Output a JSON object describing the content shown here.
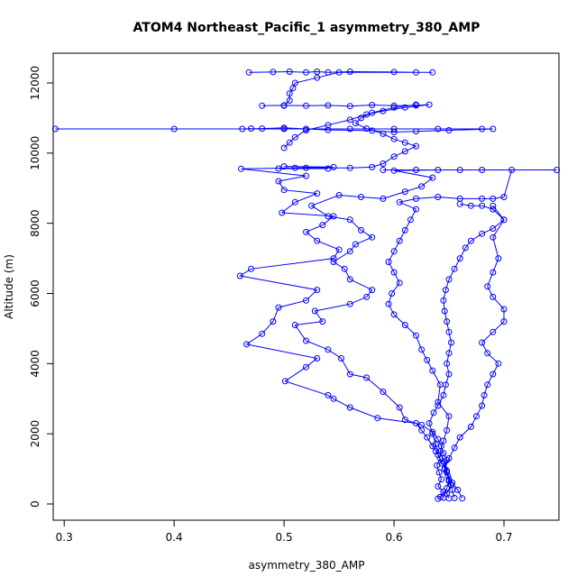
{
  "chart_data": {
    "type": "line",
    "title": "ATOM4 Northeast_Pacific_1 asymmetry_380_AMP",
    "xlabel": "asymmetry_380_AMP",
    "ylabel": "Altitude (m)",
    "xlim": [
      0.29,
      0.75
    ],
    "ylim": [
      0,
      12600
    ],
    "x_ticks": [
      0.3,
      0.4,
      0.5,
      0.6,
      0.7
    ],
    "x_tick_labels": [
      "0.3",
      "0.4",
      "0.5",
      "0.6",
      "0.7"
    ],
    "y_ticks": [
      0,
      2000,
      4000,
      6000,
      8000,
      10000,
      12000
    ],
    "y_tick_labels": [
      "0",
      "2000",
      "4000",
      "6000",
      "8000",
      "10000",
      "12000"
    ],
    "grid": false,
    "legend": "none",
    "marker": "open-circle",
    "series": [
      {
        "color": "#0000ff",
        "points": [
          [
            0.64,
            150
          ],
          [
            0.642,
            200
          ],
          [
            0.645,
            350
          ],
          [
            0.64,
            500
          ],
          [
            0.643,
            700
          ],
          [
            0.641,
            900
          ],
          [
            0.639,
            1100
          ],
          [
            0.642,
            1300
          ],
          [
            0.638,
            1500
          ],
          [
            0.635,
            1650
          ],
          [
            0.63,
            1900
          ],
          [
            0.625,
            2100
          ],
          [
            0.62,
            2300
          ],
          [
            0.585,
            2450
          ],
          [
            0.56,
            2750
          ],
          [
            0.545,
            3000
          ],
          [
            0.54,
            3100
          ],
          [
            0.501,
            3500
          ],
          [
            0.52,
            3900
          ],
          [
            0.53,
            4150
          ],
          [
            0.466,
            4550
          ],
          [
            0.48,
            4850
          ],
          [
            0.49,
            5200
          ],
          [
            0.495,
            5600
          ],
          [
            0.52,
            5800
          ],
          [
            0.53,
            6100
          ],
          [
            0.46,
            6500
          ],
          [
            0.47,
            6700
          ],
          [
            0.545,
            7000
          ],
          [
            0.55,
            7250
          ],
          [
            0.53,
            7500
          ],
          [
            0.52,
            7750
          ],
          [
            0.535,
            7950
          ],
          [
            0.545,
            8200
          ],
          [
            0.498,
            8300
          ],
          [
            0.51,
            8600
          ],
          [
            0.53,
            8850
          ],
          [
            0.5,
            8950
          ],
          [
            0.495,
            9200
          ],
          [
            0.52,
            9350
          ],
          [
            0.461,
            9550
          ],
          [
            0.51,
            9580
          ],
          [
            0.545,
            9600
          ],
          [
            0.5,
            9620
          ]
        ]
      },
      {
        "color": "#0000ff",
        "points": [
          [
            0.65,
            160
          ],
          [
            0.648,
            300
          ],
          [
            0.652,
            550
          ],
          [
            0.649,
            800
          ],
          [
            0.646,
            1000
          ],
          [
            0.648,
            1250
          ],
          [
            0.645,
            1450
          ],
          [
            0.643,
            1650
          ],
          [
            0.64,
            1850
          ],
          [
            0.635,
            2050
          ],
          [
            0.625,
            2250
          ],
          [
            0.61,
            2400
          ],
          [
            0.605,
            2750
          ],
          [
            0.59,
            3200
          ],
          [
            0.575,
            3600
          ],
          [
            0.56,
            3700
          ],
          [
            0.552,
            4150
          ],
          [
            0.54,
            4400
          ],
          [
            0.52,
            4650
          ],
          [
            0.51,
            5100
          ],
          [
            0.535,
            5200
          ],
          [
            0.528,
            5500
          ],
          [
            0.56,
            5700
          ],
          [
            0.575,
            5900
          ],
          [
            0.58,
            6100
          ],
          [
            0.56,
            6400
          ],
          [
            0.555,
            6700
          ],
          [
            0.545,
            6900
          ],
          [
            0.56,
            7200
          ],
          [
            0.565,
            7400
          ],
          [
            0.58,
            7600
          ],
          [
            0.57,
            7800
          ],
          [
            0.56,
            8100
          ],
          [
            0.54,
            8200
          ],
          [
            0.525,
            8500
          ],
          [
            0.55,
            8800
          ],
          [
            0.57,
            8750
          ],
          [
            0.59,
            8700
          ],
          [
            0.61,
            8900
          ],
          [
            0.625,
            9050
          ],
          [
            0.635,
            9300
          ],
          [
            0.6,
            9500
          ],
          [
            0.64,
            9520
          ],
          [
            0.68,
            9520
          ],
          [
            0.748,
            9520
          ]
        ]
      },
      {
        "color": "#0000ff",
        "points": [
          [
            0.655,
            170
          ],
          [
            0.653,
            400
          ],
          [
            0.65,
            650
          ],
          [
            0.648,
            950
          ],
          [
            0.645,
            1200
          ],
          [
            0.642,
            1500
          ],
          [
            0.645,
            1800
          ],
          [
            0.648,
            2100
          ],
          [
            0.65,
            2500
          ],
          [
            0.64,
            2900
          ],
          [
            0.642,
            3400
          ],
          [
            0.635,
            3800
          ],
          [
            0.63,
            4100
          ],
          [
            0.625,
            4400
          ],
          [
            0.62,
            4800
          ],
          [
            0.61,
            5100
          ],
          [
            0.6,
            5400
          ],
          [
            0.595,
            5700
          ],
          [
            0.598,
            6000
          ],
          [
            0.605,
            6300
          ],
          [
            0.6,
            6600
          ],
          [
            0.595,
            6900
          ],
          [
            0.6,
            7200
          ],
          [
            0.605,
            7500
          ],
          [
            0.61,
            7800
          ],
          [
            0.615,
            8100
          ],
          [
            0.62,
            8400
          ],
          [
            0.605,
            8600
          ],
          [
            0.62,
            8700
          ],
          [
            0.64,
            8750
          ],
          [
            0.66,
            8700
          ],
          [
            0.68,
            8700
          ],
          [
            0.69,
            8700
          ],
          [
            0.7,
            8750
          ],
          [
            0.707,
            9520
          ],
          [
            0.66,
            9520
          ],
          [
            0.62,
            9520
          ],
          [
            0.59,
            9520
          ]
        ]
      },
      {
        "color": "#0000ff",
        "points": [
          [
            0.662,
            160
          ],
          [
            0.658,
            400
          ],
          [
            0.653,
            600
          ],
          [
            0.648,
            900
          ],
          [
            0.644,
            1150
          ],
          [
            0.64,
            1400
          ],
          [
            0.638,
            1700
          ],
          [
            0.635,
            2000
          ],
          [
            0.632,
            2300
          ],
          [
            0.636,
            2600
          ],
          [
            0.64,
            2800
          ],
          [
            0.645,
            3100
          ],
          [
            0.647,
            3400
          ],
          [
            0.65,
            3700
          ],
          [
            0.648,
            4000
          ],
          [
            0.65,
            4300
          ],
          [
            0.652,
            4600
          ],
          [
            0.65,
            4900
          ],
          [
            0.648,
            5200
          ],
          [
            0.646,
            5500
          ],
          [
            0.645,
            5800
          ],
          [
            0.647,
            6100
          ],
          [
            0.65,
            6400
          ],
          [
            0.655,
            6700
          ],
          [
            0.66,
            7000
          ],
          [
            0.665,
            7300
          ],
          [
            0.67,
            7500
          ],
          [
            0.68,
            7700
          ],
          [
            0.69,
            7850
          ],
          [
            0.7,
            8100
          ],
          [
            0.69,
            8400
          ],
          [
            0.68,
            8500
          ],
          [
            0.67,
            8500
          ],
          [
            0.66,
            8550
          ]
        ]
      },
      {
        "color": "#0000ff",
        "points": [
          [
            0.645,
            180
          ],
          [
            0.648,
            450
          ],
          [
            0.65,
            700
          ],
          [
            0.646,
            1000
          ],
          [
            0.65,
            1300
          ],
          [
            0.655,
            1600
          ],
          [
            0.66,
            1900
          ],
          [
            0.67,
            2200
          ],
          [
            0.675,
            2500
          ],
          [
            0.68,
            2800
          ],
          [
            0.682,
            3100
          ],
          [
            0.685,
            3400
          ],
          [
            0.69,
            3700
          ],
          [
            0.695,
            4000
          ],
          [
            0.685,
            4300
          ],
          [
            0.68,
            4600
          ],
          [
            0.69,
            4900
          ],
          [
            0.7,
            5200
          ],
          [
            0.7,
            5550
          ],
          [
            0.69,
            5900
          ],
          [
            0.685,
            6200
          ],
          [
            0.69,
            6600
          ],
          [
            0.695,
            7000
          ],
          [
            0.69,
            7600
          ],
          [
            0.7,
            8100
          ],
          [
            0.69,
            8500
          ]
        ]
      },
      {
        "color": "#0000ff",
        "points": [
          [
            0.292,
            10690
          ],
          [
            0.4,
            10690
          ],
          [
            0.5,
            10690
          ],
          [
            0.56,
            10690
          ],
          [
            0.6,
            10690
          ],
          [
            0.64,
            10690
          ],
          [
            0.68,
            10690
          ],
          [
            0.69,
            10690
          ],
          [
            0.65,
            10650
          ],
          [
            0.62,
            10620
          ],
          [
            0.6,
            10600
          ],
          [
            0.58,
            10640
          ],
          [
            0.54,
            10660
          ],
          [
            0.52,
            10690
          ],
          [
            0.5,
            10720
          ],
          [
            0.48,
            10700
          ],
          [
            0.462,
            10690
          ],
          [
            0.47,
            10700
          ]
        ]
      },
      {
        "color": "#0000ff",
        "points": [
          [
            0.48,
            11350
          ],
          [
            0.5,
            11360
          ],
          [
            0.52,
            11350
          ],
          [
            0.54,
            11360
          ],
          [
            0.56,
            11340
          ],
          [
            0.58,
            11370
          ],
          [
            0.6,
            11350
          ],
          [
            0.62,
            11360
          ],
          [
            0.632,
            11380
          ],
          [
            0.61,
            11300
          ],
          [
            0.59,
            11200
          ],
          [
            0.575,
            11100
          ],
          [
            0.56,
            10950
          ],
          [
            0.54,
            10800
          ],
          [
            0.52,
            10650
          ],
          [
            0.51,
            10450
          ],
          [
            0.505,
            10300
          ],
          [
            0.5,
            10150
          ]
        ]
      },
      {
        "color": "#0000ff",
        "points": [
          [
            0.468,
            12300
          ],
          [
            0.49,
            12310
          ],
          [
            0.505,
            12320
          ],
          [
            0.52,
            12300
          ],
          [
            0.53,
            12320
          ],
          [
            0.54,
            12300
          ],
          [
            0.56,
            12320
          ],
          [
            0.6,
            12310
          ],
          [
            0.62,
            12300
          ],
          [
            0.635,
            12300
          ],
          [
            0.55,
            12300
          ],
          [
            0.53,
            12150
          ],
          [
            0.51,
            12000
          ],
          [
            0.508,
            11850
          ],
          [
            0.505,
            11700
          ],
          [
            0.505,
            11500
          ],
          [
            0.5,
            11350
          ]
        ]
      },
      {
        "color": "#0000ff",
        "points": [
          [
            0.62,
            11380
          ],
          [
            0.6,
            11300
          ],
          [
            0.58,
            11150
          ],
          [
            0.57,
            11000
          ],
          [
            0.565,
            10850
          ],
          [
            0.575,
            10700
          ],
          [
            0.59,
            10550
          ],
          [
            0.6,
            10400
          ],
          [
            0.61,
            10300
          ],
          [
            0.62,
            10200
          ],
          [
            0.61,
            10050
          ],
          [
            0.6,
            9900
          ],
          [
            0.59,
            9700
          ],
          [
            0.58,
            9600
          ],
          [
            0.56,
            9580
          ],
          [
            0.52,
            9580
          ],
          [
            0.54,
            9560
          ],
          [
            0.495,
            9560
          ]
        ]
      }
    ]
  }
}
